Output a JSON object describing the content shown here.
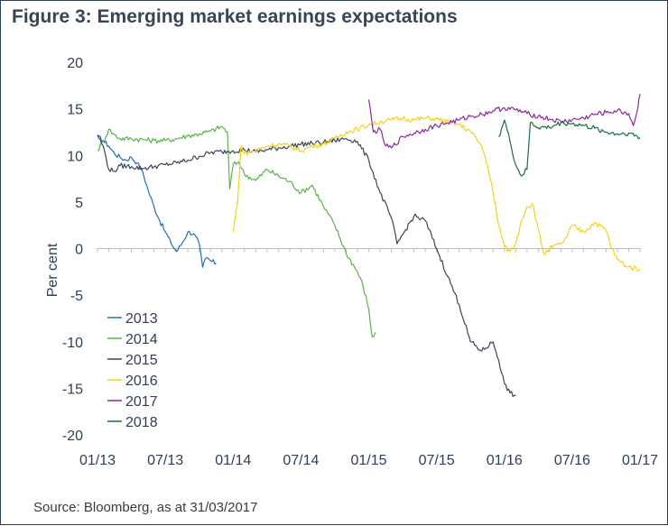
{
  "title": "Figure 3: Emerging market earnings expectations",
  "source": "Source: Bloomberg, as at 31/03/2017",
  "chart_data": {
    "type": "line",
    "ylabel": "Per cent",
    "xlabel": "",
    "ylim": [
      -20,
      20
    ],
    "yticks": [
      20,
      15,
      10,
      5,
      0,
      -5,
      -10,
      -15,
      -20
    ],
    "xlim": [
      0,
      48
    ],
    "xtick_labels": [
      "01/13",
      "07/13",
      "01/14",
      "07/14",
      "01/15",
      "07/15",
      "01/16",
      "07/16",
      "01/17"
    ],
    "xtick_values": [
      0,
      6,
      12,
      18,
      24,
      30,
      36,
      42,
      48
    ],
    "x_units": "months since 01/13",
    "legend_position": "bottom-left",
    "series": [
      {
        "name": "2013",
        "color": "#1f6fb8",
        "points": [
          [
            0,
            12
          ],
          [
            0.5,
            11.6
          ],
          [
            1,
            11
          ],
          [
            1.5,
            10.2
          ],
          [
            2,
            9.8
          ],
          [
            2.5,
            9.5
          ],
          [
            3,
            9.8
          ],
          [
            3.5,
            9.2
          ],
          [
            4,
            8.2
          ],
          [
            4.5,
            6.2
          ],
          [
            5,
            4.5
          ],
          [
            5.5,
            3
          ],
          [
            6,
            1.8
          ],
          [
            6.5,
            0.6
          ],
          [
            7,
            -0.3
          ],
          [
            7.5,
            0.6
          ],
          [
            8,
            1.8
          ],
          [
            8.5,
            1.6
          ],
          [
            9,
            0.5
          ],
          [
            9.3,
            -2
          ],
          [
            9.6,
            -1
          ],
          [
            10,
            -1.3
          ],
          [
            10.5,
            -1.6
          ]
        ]
      },
      {
        "name": "2014",
        "color": "#5cb14a",
        "points": [
          [
            0,
            10.5
          ],
          [
            0.5,
            11.5
          ],
          [
            1,
            12.8
          ],
          [
            1.5,
            12.2
          ],
          [
            2,
            11.8
          ],
          [
            3,
            11.8
          ],
          [
            4,
            11.7
          ],
          [
            5,
            11.6
          ],
          [
            6,
            11.6
          ],
          [
            7,
            11.8
          ],
          [
            8,
            12.1
          ],
          [
            9,
            12.3
          ],
          [
            10,
            12.6
          ],
          [
            11,
            13.1
          ],
          [
            11.5,
            12.5
          ],
          [
            11.7,
            6.4
          ],
          [
            12,
            9
          ],
          [
            12.5,
            9.3
          ],
          [
            13,
            8
          ],
          [
            14,
            7.3
          ],
          [
            15,
            8.5
          ],
          [
            16,
            7.8
          ],
          [
            17,
            7.2
          ],
          [
            18,
            6
          ],
          [
            19,
            6.8
          ],
          [
            20,
            4.5
          ],
          [
            21,
            2.5
          ],
          [
            22,
            -0.5
          ],
          [
            23,
            -2.5
          ],
          [
            23.5,
            -4
          ],
          [
            24,
            -6.5
          ],
          [
            24.3,
            -9.5
          ],
          [
            24.6,
            -9
          ]
        ]
      },
      {
        "name": "2015",
        "color": "#3c4558",
        "points": [
          [
            0,
            12.2
          ],
          [
            0.5,
            11
          ],
          [
            1,
            8.5
          ],
          [
            1.5,
            8.3
          ],
          [
            2,
            8.9
          ],
          [
            3,
            8.8
          ],
          [
            4,
            8.6
          ],
          [
            5,
            8.8
          ],
          [
            6,
            9
          ],
          [
            7,
            9.2
          ],
          [
            8,
            9.5
          ],
          [
            9,
            9.9
          ],
          [
            10,
            10.3
          ],
          [
            11,
            10.4
          ],
          [
            12,
            10.5
          ],
          [
            13,
            10.6
          ],
          [
            14,
            10.4
          ],
          [
            15,
            10.6
          ],
          [
            16,
            10.8
          ],
          [
            17,
            11
          ],
          [
            18,
            11.2
          ],
          [
            19,
            11.3
          ],
          [
            20,
            11.4
          ],
          [
            21,
            11.6
          ],
          [
            22,
            11.8
          ],
          [
            23,
            11.5
          ],
          [
            24,
            9.5
          ],
          [
            25,
            6
          ],
          [
            26,
            3.3
          ],
          [
            26.5,
            0.5
          ],
          [
            27,
            1.5
          ],
          [
            28,
            3.5
          ],
          [
            29,
            3
          ],
          [
            30,
            0
          ],
          [
            31,
            -3
          ],
          [
            32,
            -6
          ],
          [
            33,
            -10
          ],
          [
            34,
            -11
          ],
          [
            35,
            -10
          ],
          [
            35.5,
            -12
          ],
          [
            36,
            -14.5
          ],
          [
            36.5,
            -15.5
          ],
          [
            37,
            -15.8
          ]
        ]
      },
      {
        "name": "2016",
        "color": "#f2d21b",
        "points": [
          [
            12,
            1.8
          ],
          [
            12.4,
            5
          ],
          [
            12.7,
            11
          ],
          [
            13,
            10.2
          ],
          [
            14,
            10.5
          ],
          [
            15,
            11
          ],
          [
            16,
            11.2
          ],
          [
            17,
            11
          ],
          [
            18,
            10.5
          ],
          [
            19,
            11
          ],
          [
            20,
            11.2
          ],
          [
            21,
            11.8
          ],
          [
            22,
            12.5
          ],
          [
            23,
            12.8
          ],
          [
            24,
            13.3
          ],
          [
            25,
            13.6
          ],
          [
            26,
            13.8
          ],
          [
            27,
            14
          ],
          [
            28,
            13.8
          ],
          [
            29,
            14
          ],
          [
            30,
            13.9
          ],
          [
            31,
            13.6
          ],
          [
            32,
            13.3
          ],
          [
            33,
            12.6
          ],
          [
            34,
            11
          ],
          [
            34.5,
            9
          ],
          [
            35,
            6
          ],
          [
            35.5,
            2.5
          ],
          [
            36,
            0.2
          ],
          [
            36.5,
            -0.3
          ],
          [
            37,
            0.5
          ],
          [
            37.5,
            3
          ],
          [
            38,
            4.5
          ],
          [
            38.5,
            4.8
          ],
          [
            39,
            2
          ],
          [
            39.5,
            -0.6
          ],
          [
            40,
            0
          ],
          [
            41,
            0.5
          ],
          [
            41.5,
            1.2
          ],
          [
            42,
            2.5
          ],
          [
            43,
            1.8
          ],
          [
            44,
            2.8
          ],
          [
            45,
            2
          ],
          [
            45.5,
            0
          ],
          [
            46,
            -1.2
          ],
          [
            47,
            -2
          ],
          [
            48,
            -2.2
          ]
        ]
      },
      {
        "name": "2017",
        "color": "#8a2b9c",
        "points": [
          [
            24,
            16
          ],
          [
            24.4,
            12.5
          ],
          [
            25,
            12.8
          ],
          [
            25.5,
            11
          ],
          [
            26,
            10.8
          ],
          [
            27,
            12
          ],
          [
            28,
            12.4
          ],
          [
            29,
            12.8
          ],
          [
            30,
            13.2
          ],
          [
            31,
            13.5
          ],
          [
            32,
            13.8
          ],
          [
            33,
            14.2
          ],
          [
            34,
            14.4
          ],
          [
            35,
            14.8
          ],
          [
            36,
            15.1
          ],
          [
            37,
            14.9
          ],
          [
            38,
            14.5
          ],
          [
            39,
            14.2
          ],
          [
            40,
            13.9
          ],
          [
            41,
            13.6
          ],
          [
            42,
            13.8
          ],
          [
            43,
            14
          ],
          [
            44,
            14.4
          ],
          [
            45,
            14.6
          ],
          [
            46,
            14.8
          ],
          [
            47,
            14.5
          ],
          [
            47.4,
            13.2
          ],
          [
            47.8,
            15
          ],
          [
            48,
            16.6
          ]
        ]
      },
      {
        "name": "2018",
        "color": "#1f6b3c",
        "points": [
          [
            35.5,
            12
          ],
          [
            36,
            13.8
          ],
          [
            36.5,
            11.5
          ],
          [
            37,
            9
          ],
          [
            37.5,
            7.8
          ],
          [
            38,
            8.5
          ],
          [
            38.3,
            13.5
          ],
          [
            39,
            13
          ],
          [
            40,
            13
          ],
          [
            41,
            13.5
          ],
          [
            42,
            13.4
          ],
          [
            43,
            13.2
          ],
          [
            44,
            12.9
          ],
          [
            45,
            12.5
          ],
          [
            46,
            12.3
          ],
          [
            47,
            12.4
          ],
          [
            48,
            11.9
          ]
        ]
      }
    ]
  }
}
